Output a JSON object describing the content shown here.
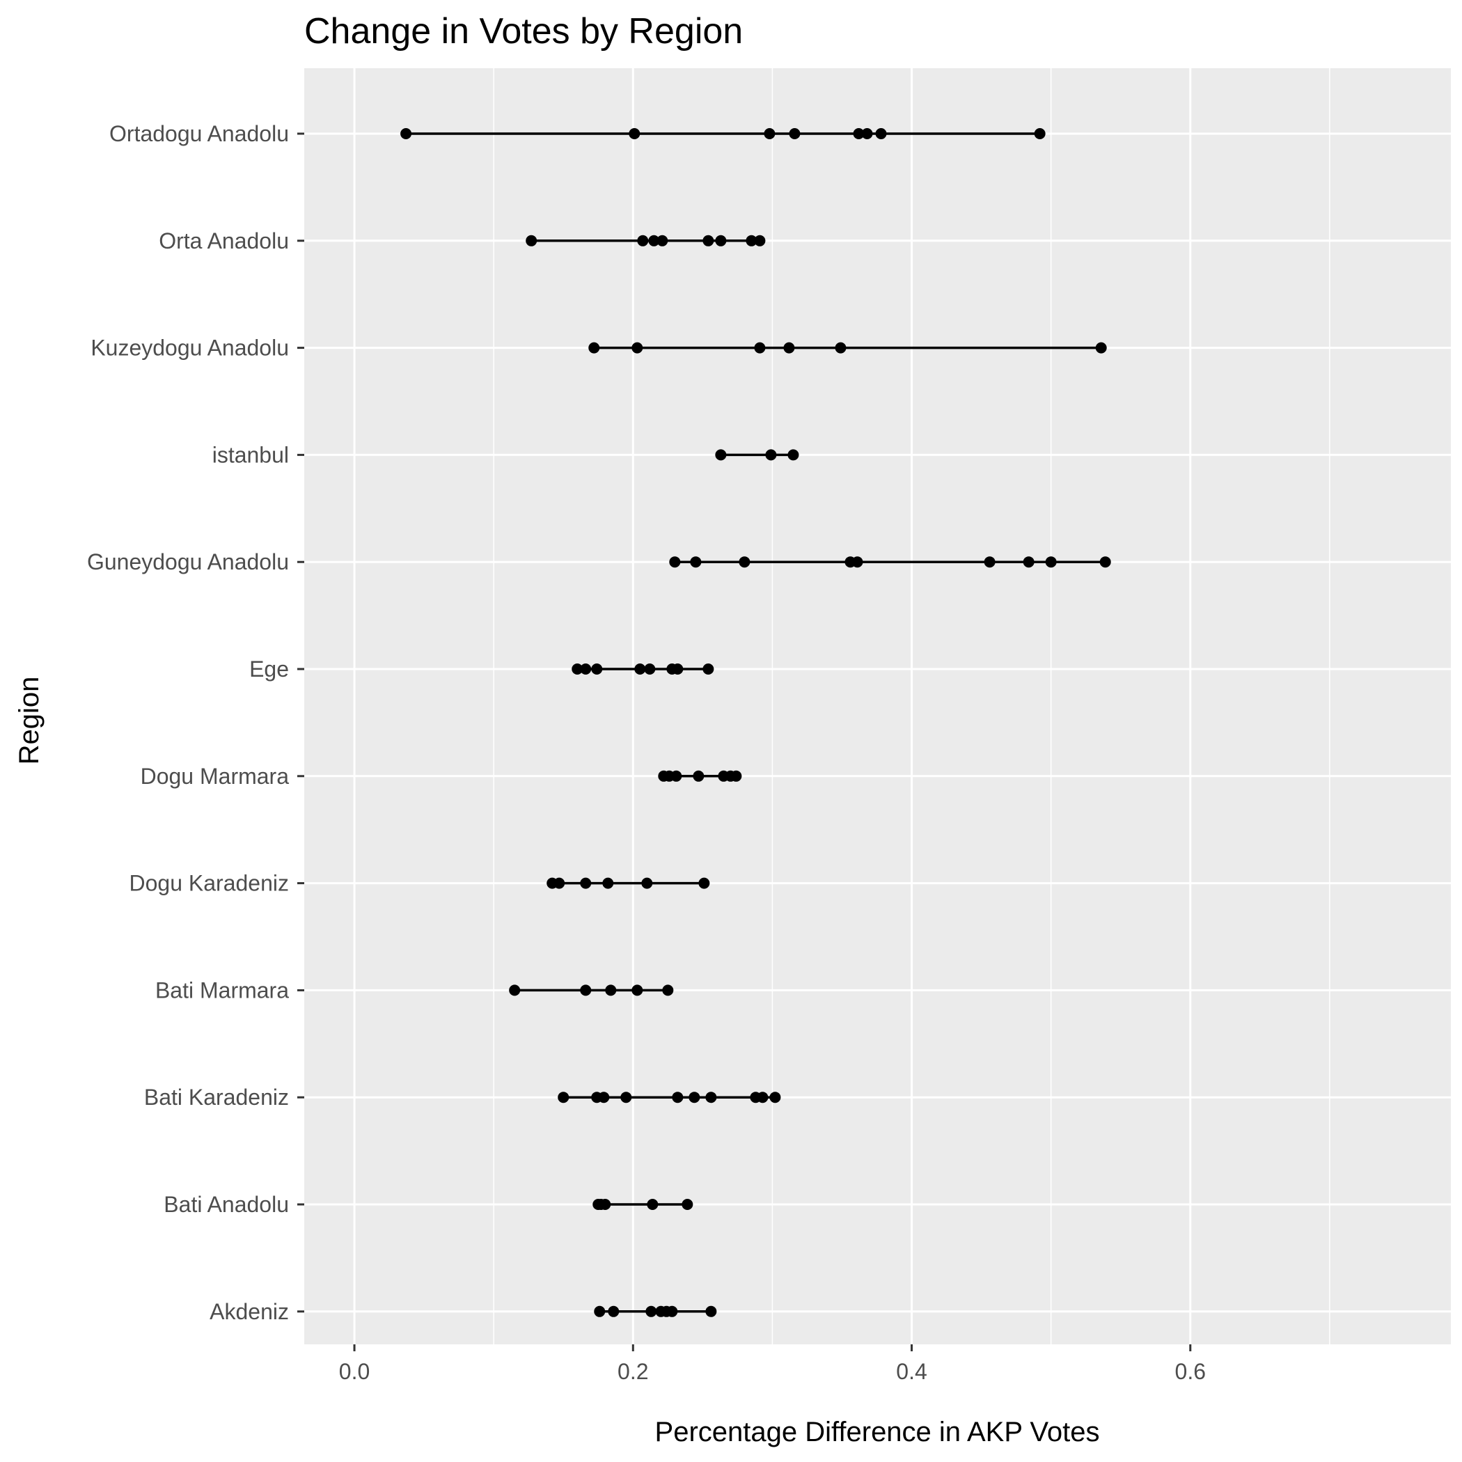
{
  "chart_data": {
    "type": "scatter",
    "title": "Change in Votes by Region",
    "xlabel": "Percentage Difference in AKP Votes",
    "ylabel": "Region",
    "xlim": [
      -0.036,
      0.787
    ],
    "x_ticks": [
      0.0,
      0.2,
      0.4,
      0.6
    ],
    "x_tick_labels": [
      "0.0",
      "0.2",
      "0.4",
      "0.6"
    ],
    "grid": true,
    "panel_background": "#ebebeb",
    "grid_color": "#ffffff",
    "point_color": "#000000",
    "categories": [
      "Ortadogu Anadolu",
      "Orta Anadolu",
      "Kuzeydogu Anadolu",
      "istanbul",
      "Guneydogu Anadolu",
      "Ege",
      "Dogu Marmara",
      "Dogu Karadeniz",
      "Bati Marmara",
      "Bati Karadeniz",
      "Bati Anadolu",
      "Akdeniz"
    ],
    "series": [
      {
        "region": "Ortadogu Anadolu",
        "values": [
          0.037,
          0.201,
          0.298,
          0.316,
          0.362,
          0.368,
          0.378,
          0.492
        ]
      },
      {
        "region": "Orta Anadolu",
        "values": [
          0.127,
          0.207,
          0.215,
          0.221,
          0.254,
          0.263,
          0.285,
          0.291
        ]
      },
      {
        "region": "Kuzeydogu Anadolu",
        "values": [
          0.172,
          0.203,
          0.291,
          0.312,
          0.349,
          0.536
        ]
      },
      {
        "region": "istanbul",
        "values": [
          0.263,
          0.299,
          0.315
        ]
      },
      {
        "region": "Guneydogu Anadolu",
        "values": [
          0.23,
          0.245,
          0.28,
          0.356,
          0.361,
          0.456,
          0.484,
          0.5,
          0.539
        ]
      },
      {
        "region": "Ege",
        "values": [
          0.16,
          0.166,
          0.174,
          0.205,
          0.212,
          0.228,
          0.232,
          0.254
        ]
      },
      {
        "region": "Dogu Marmara",
        "values": [
          0.222,
          0.226,
          0.231,
          0.247,
          0.265,
          0.27,
          0.274
        ]
      },
      {
        "region": "Dogu Karadeniz",
        "values": [
          0.142,
          0.147,
          0.166,
          0.182,
          0.21,
          0.251
        ]
      },
      {
        "region": "Bati Marmara",
        "values": [
          0.115,
          0.166,
          0.184,
          0.203,
          0.225
        ]
      },
      {
        "region": "Bati Karadeniz",
        "values": [
          0.15,
          0.174,
          0.179,
          0.195,
          0.232,
          0.244,
          0.256,
          0.288,
          0.293,
          0.302
        ]
      },
      {
        "region": "Bati Anadolu",
        "values": [
          0.175,
          0.177,
          0.18,
          0.214,
          0.239
        ]
      },
      {
        "region": "Akdeniz",
        "values": [
          0.176,
          0.186,
          0.213,
          0.22,
          0.224,
          0.228,
          0.256
        ]
      }
    ]
  }
}
